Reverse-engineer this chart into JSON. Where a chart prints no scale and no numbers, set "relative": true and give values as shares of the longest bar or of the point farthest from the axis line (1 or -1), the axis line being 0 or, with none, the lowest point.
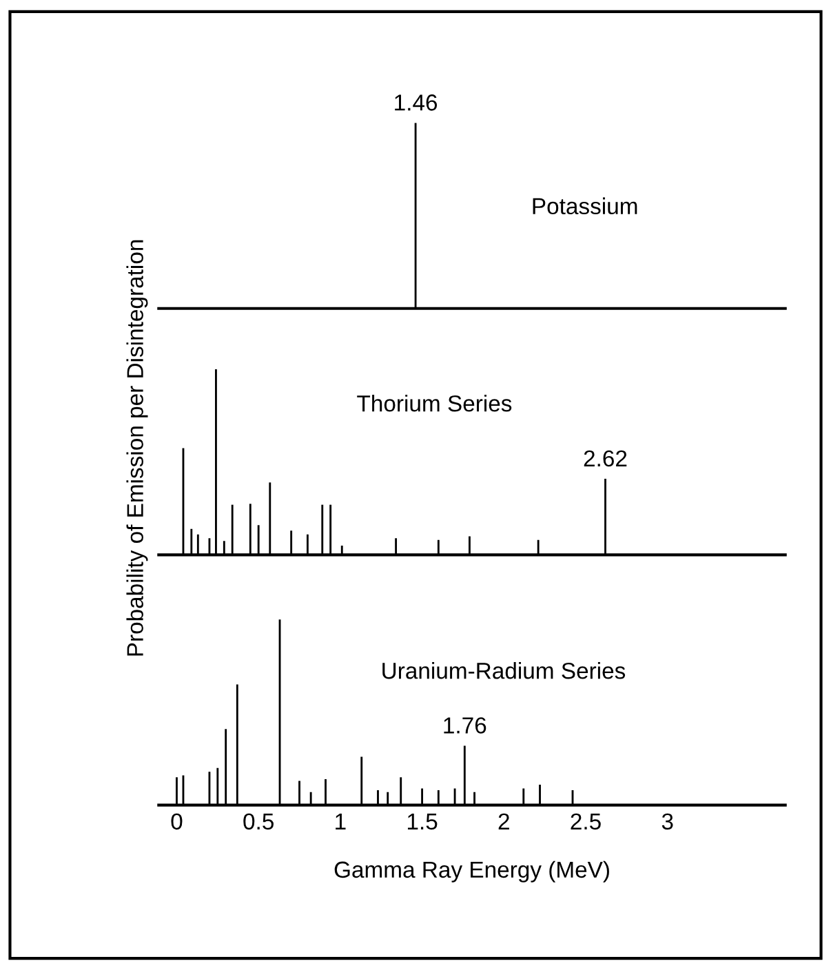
{
  "chart_data": [
    {
      "type": "bar",
      "title": "Potassium",
      "relative": true,
      "xlim": [
        -0.11,
        3.72
      ],
      "tick_labels": false,
      "color": "#000000",
      "x": [
        1.46
      ],
      "values": [
        1.0
      ],
      "annotations": [
        {
          "text": "1.46",
          "x": 1.46,
          "y": 1.0
        }
      ]
    },
    {
      "type": "bar",
      "title": "Thorium Series",
      "relative": true,
      "xlim": [
        -0.11,
        3.72
      ],
      "tick_labels": false,
      "color": "#000000",
      "ylabel": "Probability of Emission per Disintegration",
      "x": [
        0.04,
        0.09,
        0.13,
        0.2,
        0.24,
        0.29,
        0.34,
        0.45,
        0.5,
        0.57,
        0.7,
        0.8,
        0.89,
        0.94,
        1.01,
        1.34,
        1.6,
        1.79,
        2.21,
        2.62
      ],
      "values": [
        0.575,
        0.14,
        0.11,
        0.09,
        1.0,
        0.075,
        0.27,
        0.275,
        0.16,
        0.39,
        0.13,
        0.11,
        0.27,
        0.27,
        0.05,
        0.09,
        0.08,
        0.1,
        0.08,
        0.41
      ],
      "annotations": [
        {
          "text": "2.62",
          "x": 2.62,
          "y": 0.41
        }
      ]
    },
    {
      "type": "bar",
      "title": "Uranium-Radium Series",
      "relative": true,
      "xlim": [
        -0.11,
        3.72
      ],
      "tick_labels": "x",
      "color": "#000000",
      "xticks": [
        0,
        0.5,
        1,
        1.5,
        2,
        2.5,
        3
      ],
      "xlabel": "Gamma Ray Energy (MeV)",
      "x": [
        0.0,
        0.04,
        0.2,
        0.25,
        0.3,
        0.37,
        0.63,
        0.75,
        0.82,
        0.91,
        1.13,
        1.23,
        1.29,
        1.37,
        1.5,
        1.6,
        1.7,
        1.76,
        1.82,
        2.12,
        2.22,
        2.42
      ],
      "values": [
        0.15,
        0.16,
        0.18,
        0.2,
        0.41,
        0.65,
        1.0,
        0.13,
        0.07,
        0.14,
        0.26,
        0.08,
        0.07,
        0.15,
        0.09,
        0.08,
        0.09,
        0.32,
        0.07,
        0.09,
        0.11,
        0.08
      ],
      "annotations": [
        {
          "text": "1.76",
          "x": 1.76,
          "y": 0.32
        }
      ]
    }
  ]
}
